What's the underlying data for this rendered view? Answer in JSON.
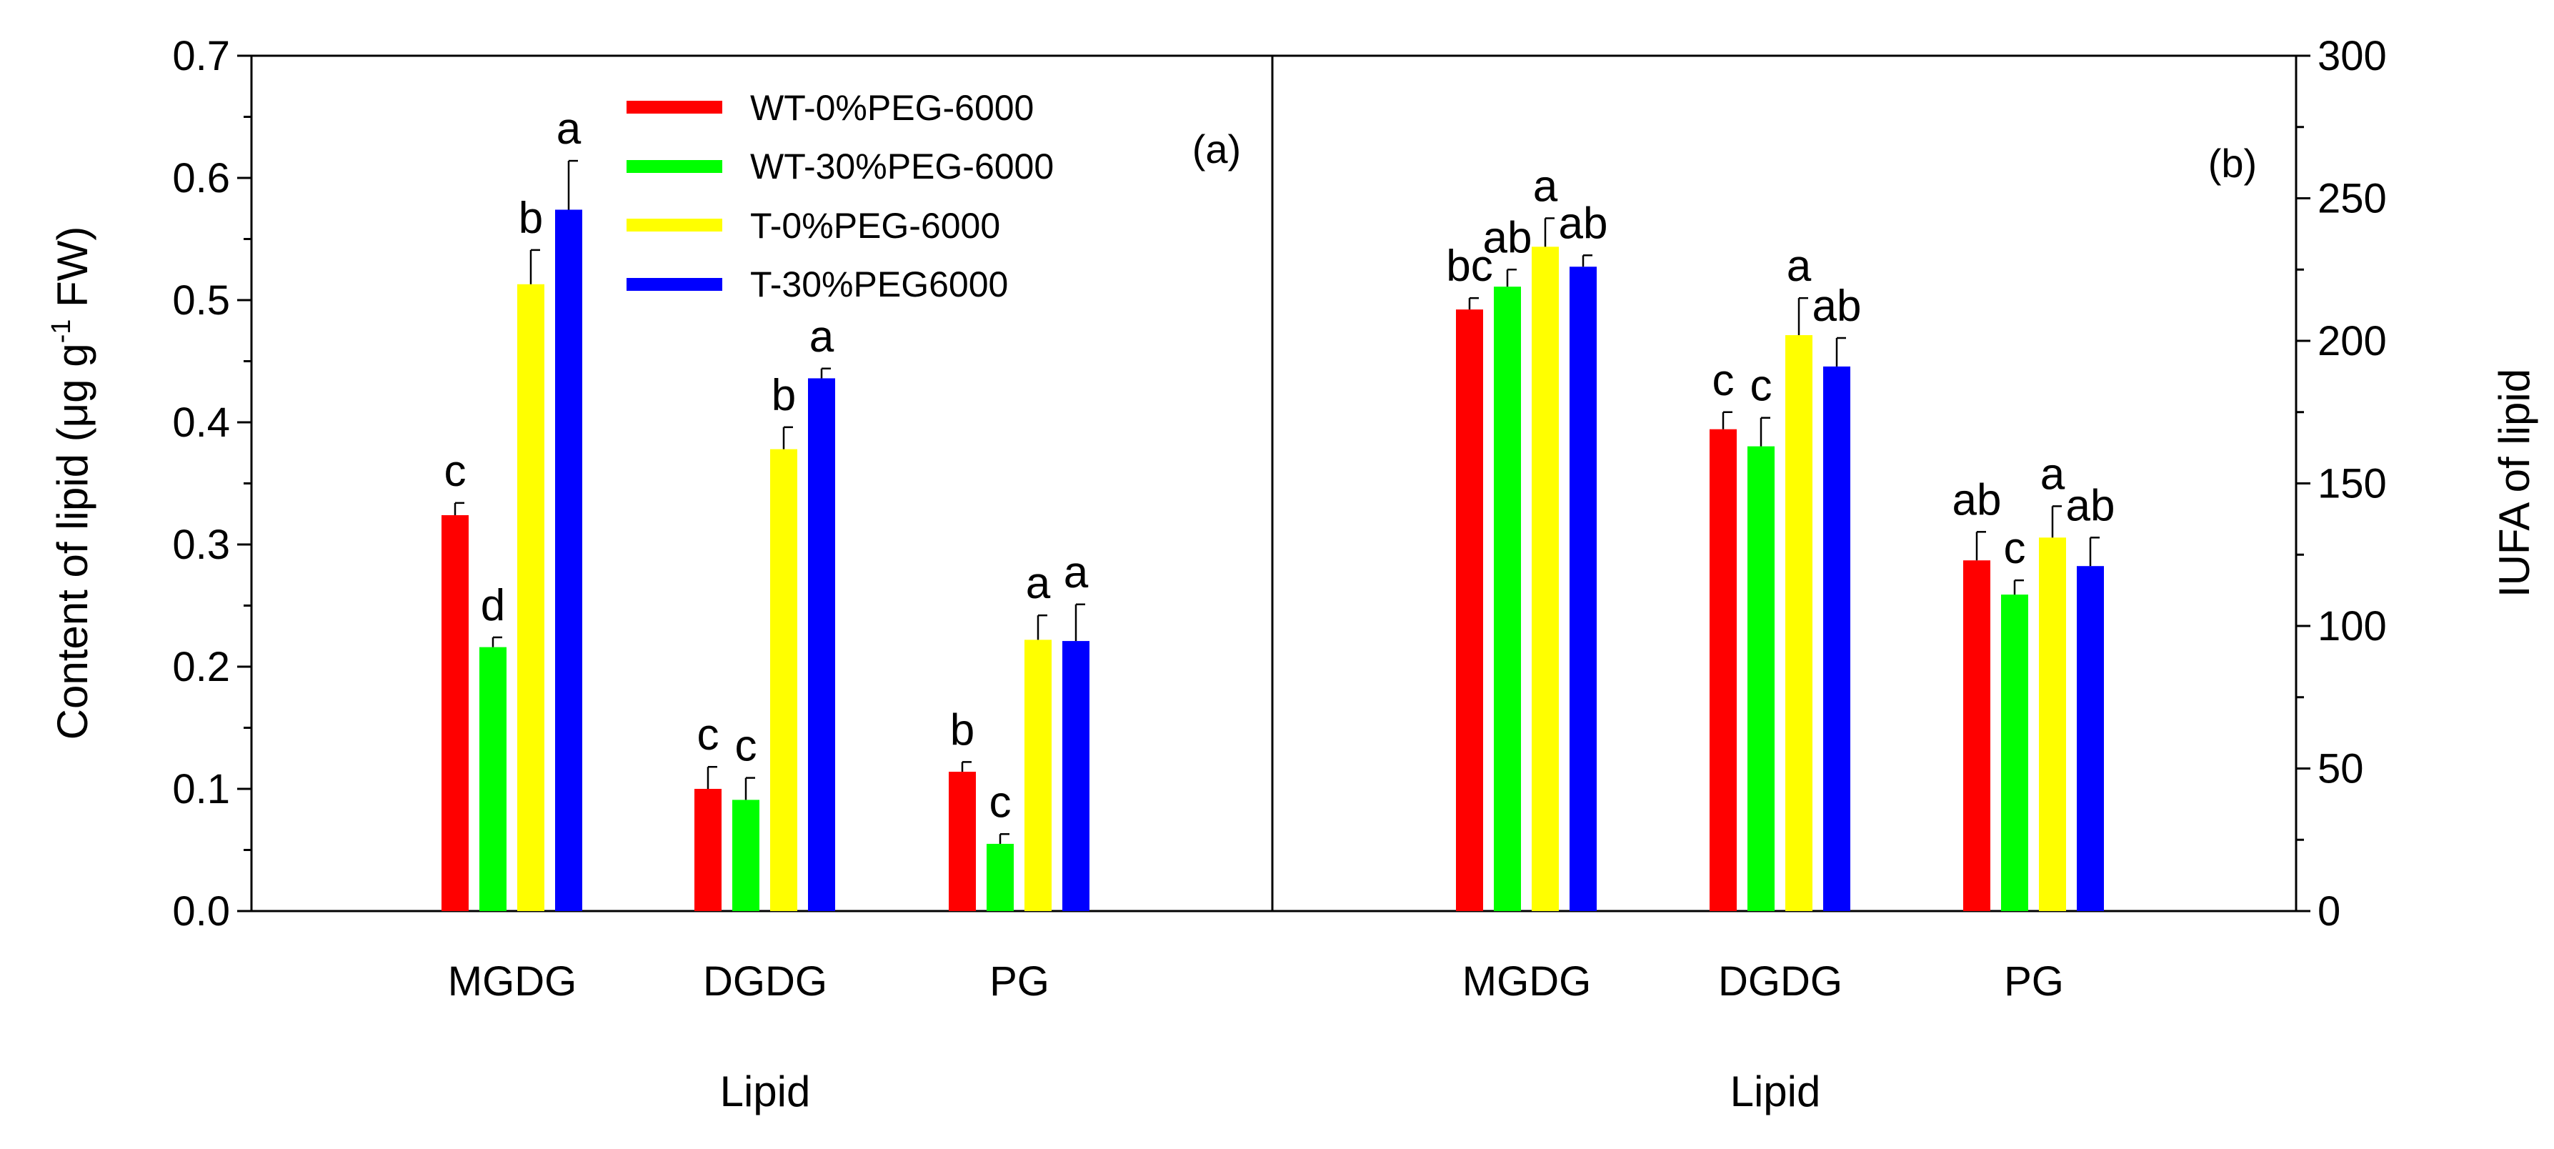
{
  "chart_data": [
    {
      "panel": "a",
      "type": "bar",
      "panel_label": "(a)",
      "xlabel": "Lipid",
      "ylabel_main": "Content of lipid (μg g",
      "ylabel_sup": "-1",
      "ylabel_end": " FW)",
      "ylim": [
        0,
        0.7
      ],
      "yticks": [
        "0.0",
        "0.1",
        "0.2",
        "0.3",
        "0.4",
        "0.5",
        "0.6",
        "0.7"
      ],
      "categories": [
        "MGDG",
        "DGDG",
        "PG"
      ],
      "series": [
        {
          "name": "WT-0%PEG-6000",
          "color": "#ff0000",
          "values": [
            0.324,
            0.1,
            0.114
          ],
          "errors": [
            0.01,
            0.018,
            0.008
          ],
          "letters": [
            "c",
            "c",
            "b"
          ]
        },
        {
          "name": "WT-30%PEG-6000",
          "color": "#00ff00",
          "values": [
            0.216,
            0.091,
            0.055
          ],
          "errors": [
            0.008,
            0.018,
            0.008
          ],
          "letters": [
            "d",
            "c",
            "c"
          ]
        },
        {
          "name": "T-0%PEG-6000",
          "color": "#ffff00",
          "values": [
            0.513,
            0.378,
            0.222
          ],
          "errors": [
            0.028,
            0.018,
            0.02
          ],
          "letters": [
            "b",
            "b",
            "a"
          ]
        },
        {
          "name": "T-30%PEG6000",
          "color": "#0000ff",
          "values": [
            0.574,
            0.436,
            0.221
          ],
          "errors": [
            0.04,
            0.008,
            0.03
          ],
          "letters": [
            "a",
            "a",
            "a"
          ]
        }
      ],
      "legend": "top-center"
    },
    {
      "panel": "b",
      "type": "bar",
      "panel_label": "(b)",
      "xlabel": "Lipid",
      "ylabel": "IUFA of lipid",
      "ylim": [
        0,
        300
      ],
      "yticks": [
        "0",
        "50",
        "100",
        "150",
        "200",
        "250",
        "300"
      ],
      "categories": [
        "MGDG",
        "DGDG",
        "PG"
      ],
      "series": [
        {
          "name": "WT-0%PEG-6000",
          "color": "#ff0000",
          "values": [
            211,
            169,
            123
          ],
          "errors": [
            4,
            6,
            10
          ],
          "letters": [
            "bc",
            "c",
            "ab"
          ]
        },
        {
          "name": "WT-30%PEG-6000",
          "color": "#00ff00",
          "values": [
            219,
            163,
            111
          ],
          "errors": [
            6,
            10,
            5
          ],
          "letters": [
            "ab",
            "c",
            "c"
          ]
        },
        {
          "name": "T-0%PEG-6000",
          "color": "#ffff00",
          "values": [
            233,
            202,
            131
          ],
          "errors": [
            10,
            13,
            11
          ],
          "letters": [
            "a",
            "a",
            "a"
          ]
        },
        {
          "name": "T-30%PEG6000",
          "color": "#0000ff",
          "values": [
            226,
            191,
            121
          ],
          "errors": [
            4,
            10,
            10
          ],
          "letters": [
            "ab",
            "ab",
            "ab"
          ]
        }
      ]
    }
  ]
}
